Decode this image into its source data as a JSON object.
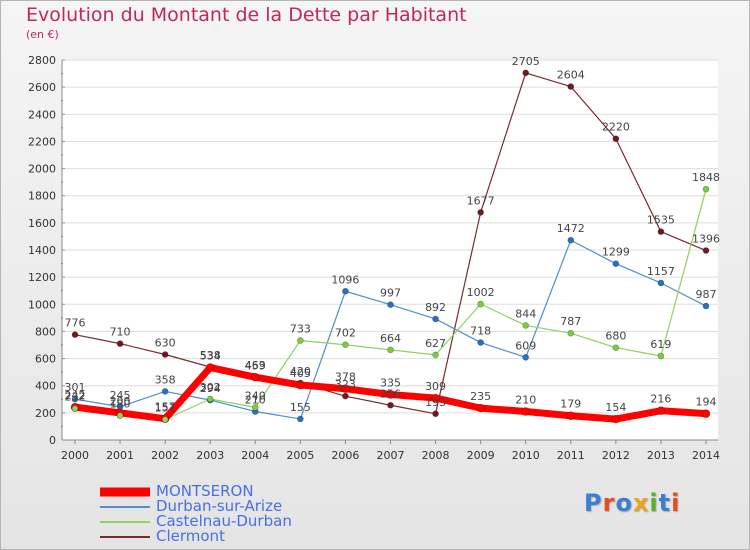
{
  "header": {
    "title": "Evolution du Montant de la Dette par Habitant",
    "subtitle": "(en €)"
  },
  "logo": {
    "text": "Proxiti",
    "colors": [
      "#3b7fd4",
      "#e94b1c",
      "#3b7fd4",
      "#e9a31c",
      "#55b030",
      "#3b7fd4",
      "#e94b1c"
    ]
  },
  "chart_data": {
    "type": "line",
    "title": "Evolution du Montant de la Dette par Habitant",
    "subtitle": "(en €)",
    "xlabel": "",
    "ylabel": "",
    "ylim": [
      0,
      2800
    ],
    "ytick_step": 200,
    "grid": true,
    "legend_position": "bottom-left",
    "categories": [
      "2000",
      "2001",
      "2002",
      "2003",
      "2004",
      "2005",
      "2006",
      "2007",
      "2008",
      "2009",
      "2010",
      "2011",
      "2012",
      "2013",
      "2014"
    ],
    "series": [
      {
        "name": "MONTSERON",
        "color": "#ff0000",
        "marker": "#ff0000",
        "width": 7,
        "values": [
          242,
          200,
          157,
          534,
          463,
          405,
          378,
          335,
          309,
          235,
          210,
          179,
          154,
          216,
          194
        ]
      },
      {
        "name": "Durban-sur-Arize",
        "color": "#4f8fce",
        "marker": "#2b6fc4",
        "width": 1.2,
        "values": [
          301,
          245,
          358,
          294,
          210,
          155,
          1096,
          997,
          892,
          718,
          609,
          1472,
          1299,
          1157,
          987
        ]
      },
      {
        "name": "Castelnau-Durban",
        "color": "#8ed35e",
        "marker": "#7ccc3c",
        "width": 1.2,
        "values": [
          232,
          180,
          151,
          302,
          240,
          733,
          702,
          664,
          627,
          1002,
          844,
          787,
          680,
          619,
          1848
        ]
      },
      {
        "name": "Clermont",
        "color": "#7d2a2e",
        "marker": "#6e1a1e",
        "width": 1.2,
        "values": [
          776,
          710,
          630,
          538,
          459,
          420,
          323,
          256,
          193,
          1677,
          2705,
          2604,
          2220,
          1535,
          1396
        ]
      }
    ],
    "data_labels": [
      {
        "x": "2000",
        "text": "776"
      },
      {
        "x": "2001",
        "text": "710"
      },
      {
        "x": "2002",
        "text": "630"
      },
      {
        "x": "2003",
        "text": "538"
      },
      {
        "x": "2004",
        "text": "459"
      },
      {
        "x": "2005",
        "text": "733"
      },
      {
        "x": "2006",
        "text": "702"
      },
      {
        "x": "2007",
        "text": "664"
      },
      {
        "x": "2008",
        "text": "627"
      },
      {
        "x": "2009",
        "text": "1002"
      },
      {
        "x": "2010",
        "text": "2705"
      },
      {
        "x": "2011",
        "text": "2604"
      },
      {
        "x": "2012",
        "text": "2220"
      },
      {
        "x": "2013",
        "text": "1535"
      },
      {
        "x": "2014",
        "text": "1848"
      },
      {
        "x": "2006",
        "text": "1096"
      },
      {
        "x": "2007",
        "text": "997"
      },
      {
        "x": "2008",
        "text": "892"
      },
      {
        "x": "2009",
        "text": "718"
      },
      {
        "x": "2010",
        "text": "609"
      },
      {
        "x": "2011",
        "text": "1472"
      },
      {
        "x": "2012",
        "text": "1299"
      },
      {
        "x": "2013",
        "text": "1157"
      },
      {
        "x": "2014",
        "text": "1396"
      },
      {
        "x": "2009",
        "text": "1677"
      },
      {
        "x": "2010",
        "text": "844"
      },
      {
        "x": "2011",
        "text": "787"
      },
      {
        "x": "2012",
        "text": "680"
      },
      {
        "x": "2013",
        "text": "619"
      },
      {
        "x": "2014",
        "text": "987"
      },
      {
        "x": "2000",
        "text": "301"
      },
      {
        "x": "2000",
        "text": "242"
      },
      {
        "x": "2000",
        "text": "232"
      },
      {
        "x": "2001",
        "text": "245"
      },
      {
        "x": "2001",
        "text": "200"
      },
      {
        "x": "2001",
        "text": "180"
      },
      {
        "x": "2002",
        "text": "358"
      },
      {
        "x": "2002",
        "text": "157"
      },
      {
        "x": "2002",
        "text": "151"
      },
      {
        "x": "2003",
        "text": "534"
      },
      {
        "x": "2003",
        "text": "302"
      },
      {
        "x": "2003",
        "text": "294"
      },
      {
        "x": "2004",
        "text": "463"
      },
      {
        "x": "2004",
        "text": "240"
      },
      {
        "x": "2004",
        "text": "210"
      },
      {
        "x": "2005",
        "text": "420"
      },
      {
        "x": "2005",
        "text": "405"
      },
      {
        "x": "2005",
        "text": "155"
      },
      {
        "x": "2006",
        "text": "378"
      },
      {
        "x": "2006",
        "text": "323"
      },
      {
        "x": "2007",
        "text": "335"
      },
      {
        "x": "2007",
        "text": "256"
      },
      {
        "x": "2008",
        "text": "309"
      },
      {
        "x": "2008",
        "text": "193"
      },
      {
        "x": "2009",
        "text": "235"
      },
      {
        "x": "2010",
        "text": "210"
      },
      {
        "x": "2011",
        "text": "179"
      },
      {
        "x": "2012",
        "text": "154"
      },
      {
        "x": "2013",
        "text": "216"
      },
      {
        "x": "2014",
        "text": "194"
      }
    ]
  }
}
